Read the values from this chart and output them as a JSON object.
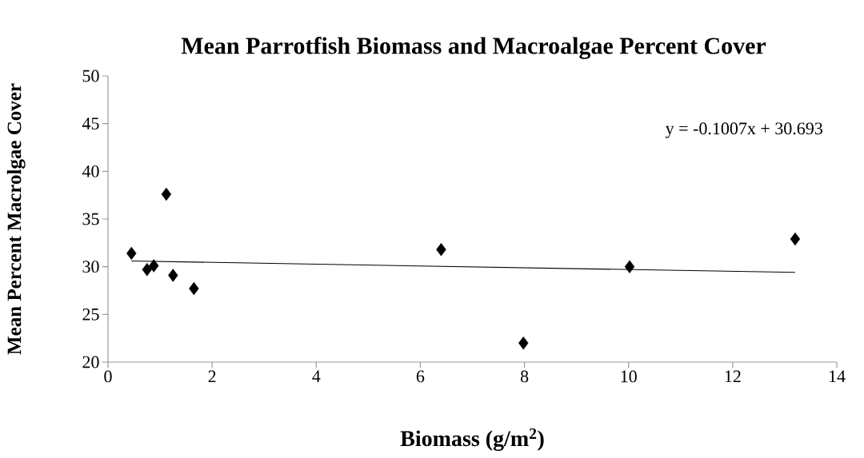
{
  "chart_data": {
    "type": "scatter",
    "title": "Mean Parrotfish Biomass and Macroalgae Percent Cover",
    "xlabel": "Biomass (g/m$^{2}$)",
    "ylabel": "Mean Percent Macrolgae Cover",
    "annotations": [
      "y = -0.1007x + 30.693"
    ],
    "xlim": [
      0,
      14
    ],
    "xticks": [
      0,
      2,
      4,
      6,
      8,
      10,
      12,
      14
    ],
    "ylim": [
      20,
      50
    ],
    "yticks": [
      20,
      25,
      30,
      35,
      40,
      45,
      50
    ],
    "grid": false,
    "marker": "diamond",
    "series": [
      {
        "color": "#000000",
        "x": [
          0.45,
          0.75,
          0.88,
          1.12,
          1.25,
          1.65,
          6.4,
          7.98,
          10.02,
          13.2
        ],
        "values": [
          31.4,
          29.7,
          30.1,
          37.6,
          29.1,
          27.7,
          31.8,
          22.0,
          30.0,
          32.9
        ]
      },
      {
        "type": "line",
        "color": "#000000",
        "marker": "none",
        "line_style": "solid",
        "x": [
          0.45,
          13.2
        ],
        "values": [
          30.6,
          29.4
        ]
      }
    ]
  }
}
